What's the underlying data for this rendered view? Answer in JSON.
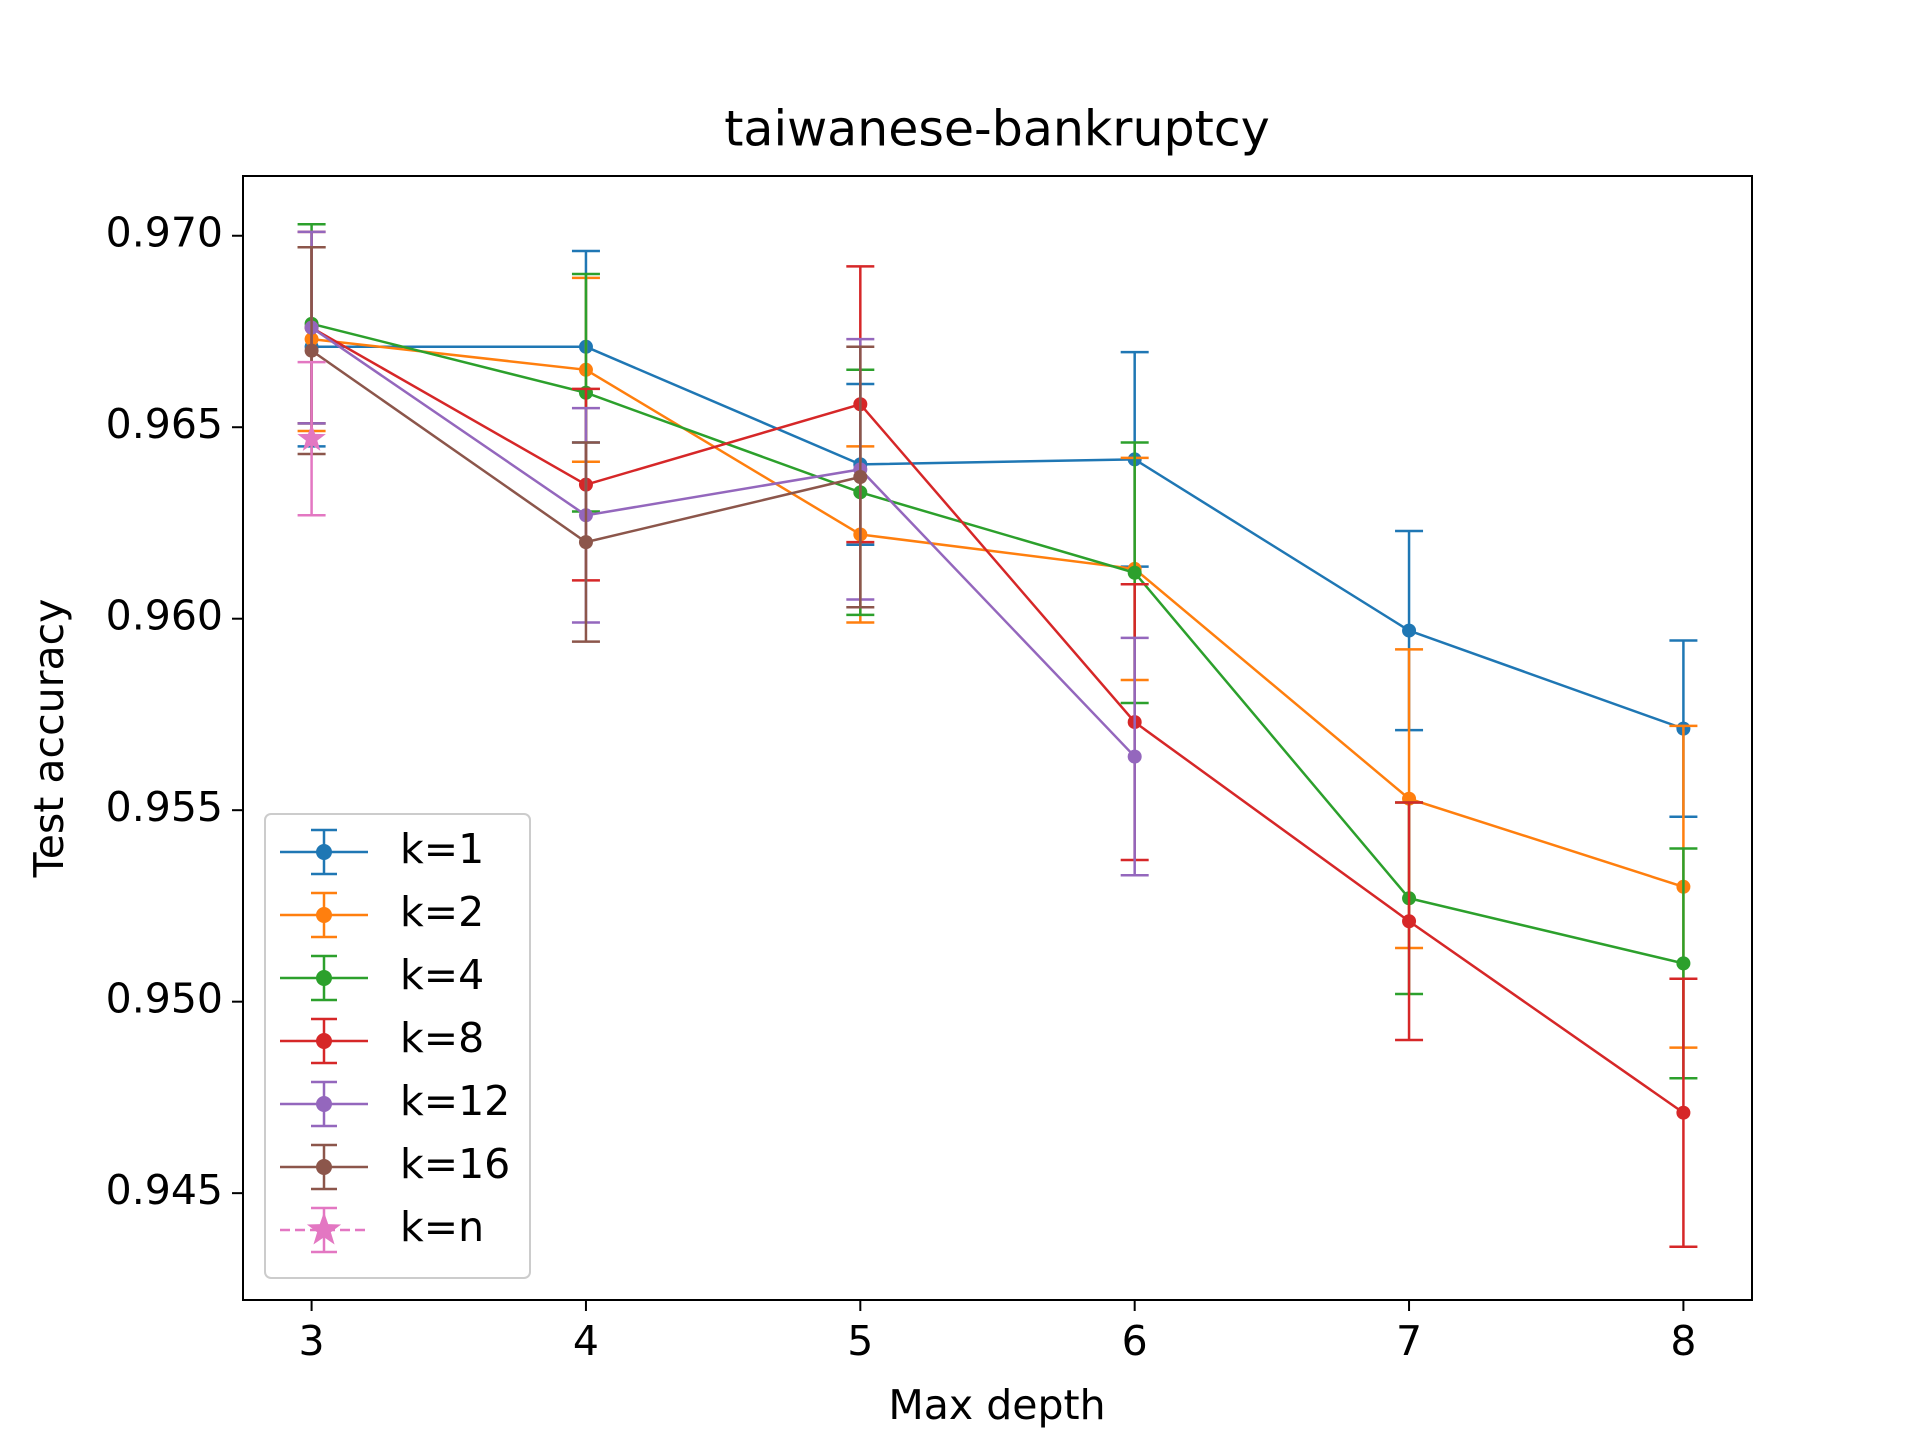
{
  "chart_data": {
    "type": "errorbar-line",
    "title": "taiwanese-bankruptcy",
    "xlabel": "Max depth",
    "ylabel": "Test accuracy",
    "xlim": [
      2.75,
      8.25
    ],
    "xticks": [
      3,
      4,
      5,
      6,
      7,
      8
    ],
    "ylim": [
      0.94221,
      0.97156
    ],
    "yticks": [
      {
        "value": 0.945,
        "label": "0.945"
      },
      {
        "value": 0.95,
        "label": "0.950"
      },
      {
        "value": 0.955,
        "label": "0.955"
      },
      {
        "value": 0.96,
        "label": "0.960"
      },
      {
        "value": 0.965,
        "label": "0.965"
      },
      {
        "value": 0.97,
        "label": "0.970"
      }
    ],
    "legend": "lower left",
    "series": [
      {
        "name": "k=1",
        "color": "#1f77b4",
        "marker": "circle",
        "dashed": false,
        "x": [
          3,
          4,
          5,
          6,
          7,
          8
        ],
        "values": [
          0.9671,
          0.9671,
          0.96403,
          0.96416,
          0.95969,
          0.95713
        ],
        "errors": [
          0.0026,
          0.0025,
          0.0021,
          0.0028,
          0.0026,
          0.0023
        ]
      },
      {
        "name": "k=2",
        "color": "#ff7f0e",
        "marker": "circle",
        "dashed": false,
        "x": [
          3,
          4,
          5,
          6,
          7,
          8
        ],
        "values": [
          0.9673,
          0.9665,
          0.9622,
          0.9613,
          0.9553,
          0.953
        ],
        "errors": [
          0.0024,
          0.0024,
          0.0023,
          0.0029,
          0.0039,
          0.0042
        ]
      },
      {
        "name": "k=4",
        "color": "#2ca02c",
        "marker": "circle",
        "dashed": false,
        "x": [
          3,
          4,
          5,
          6,
          7,
          8
        ],
        "values": [
          0.9677,
          0.9659,
          0.9633,
          0.9612,
          0.9527,
          0.951
        ],
        "errors": [
          0.0026,
          0.0031,
          0.0032,
          0.0034,
          0.0025,
          0.003
        ]
      },
      {
        "name": "k=8",
        "color": "#d62728",
        "marker": "circle",
        "dashed": false,
        "x": [
          3,
          4,
          5,
          6,
          7,
          8
        ],
        "values": [
          0.9676,
          0.9635,
          0.9656,
          0.9573,
          0.9521,
          0.9471
        ],
        "errors": [
          0.0025,
          0.0025,
          0.0036,
          0.0036,
          0.0031,
          0.0035
        ]
      },
      {
        "name": "k=12",
        "color": "#9467bd",
        "marker": "circle",
        "dashed": false,
        "x": [
          3,
          4,
          5,
          6
        ],
        "values": [
          0.9676,
          0.9627,
          0.9639,
          0.9564
        ],
        "errors": [
          0.0025,
          0.0028,
          0.0034,
          0.0031
        ]
      },
      {
        "name": "k=16",
        "color": "#8c564b",
        "marker": "circle",
        "dashed": false,
        "x": [
          3,
          4,
          5
        ],
        "values": [
          0.967,
          0.962,
          0.9637
        ],
        "errors": [
          0.0027,
          0.0026,
          0.0034
        ]
      },
      {
        "name": "k=n",
        "color": "#e377c2",
        "marker": "star",
        "dashed": true,
        "x": [
          3
        ],
        "values": [
          0.9647
        ],
        "errors": [
          0.002
        ]
      }
    ]
  }
}
